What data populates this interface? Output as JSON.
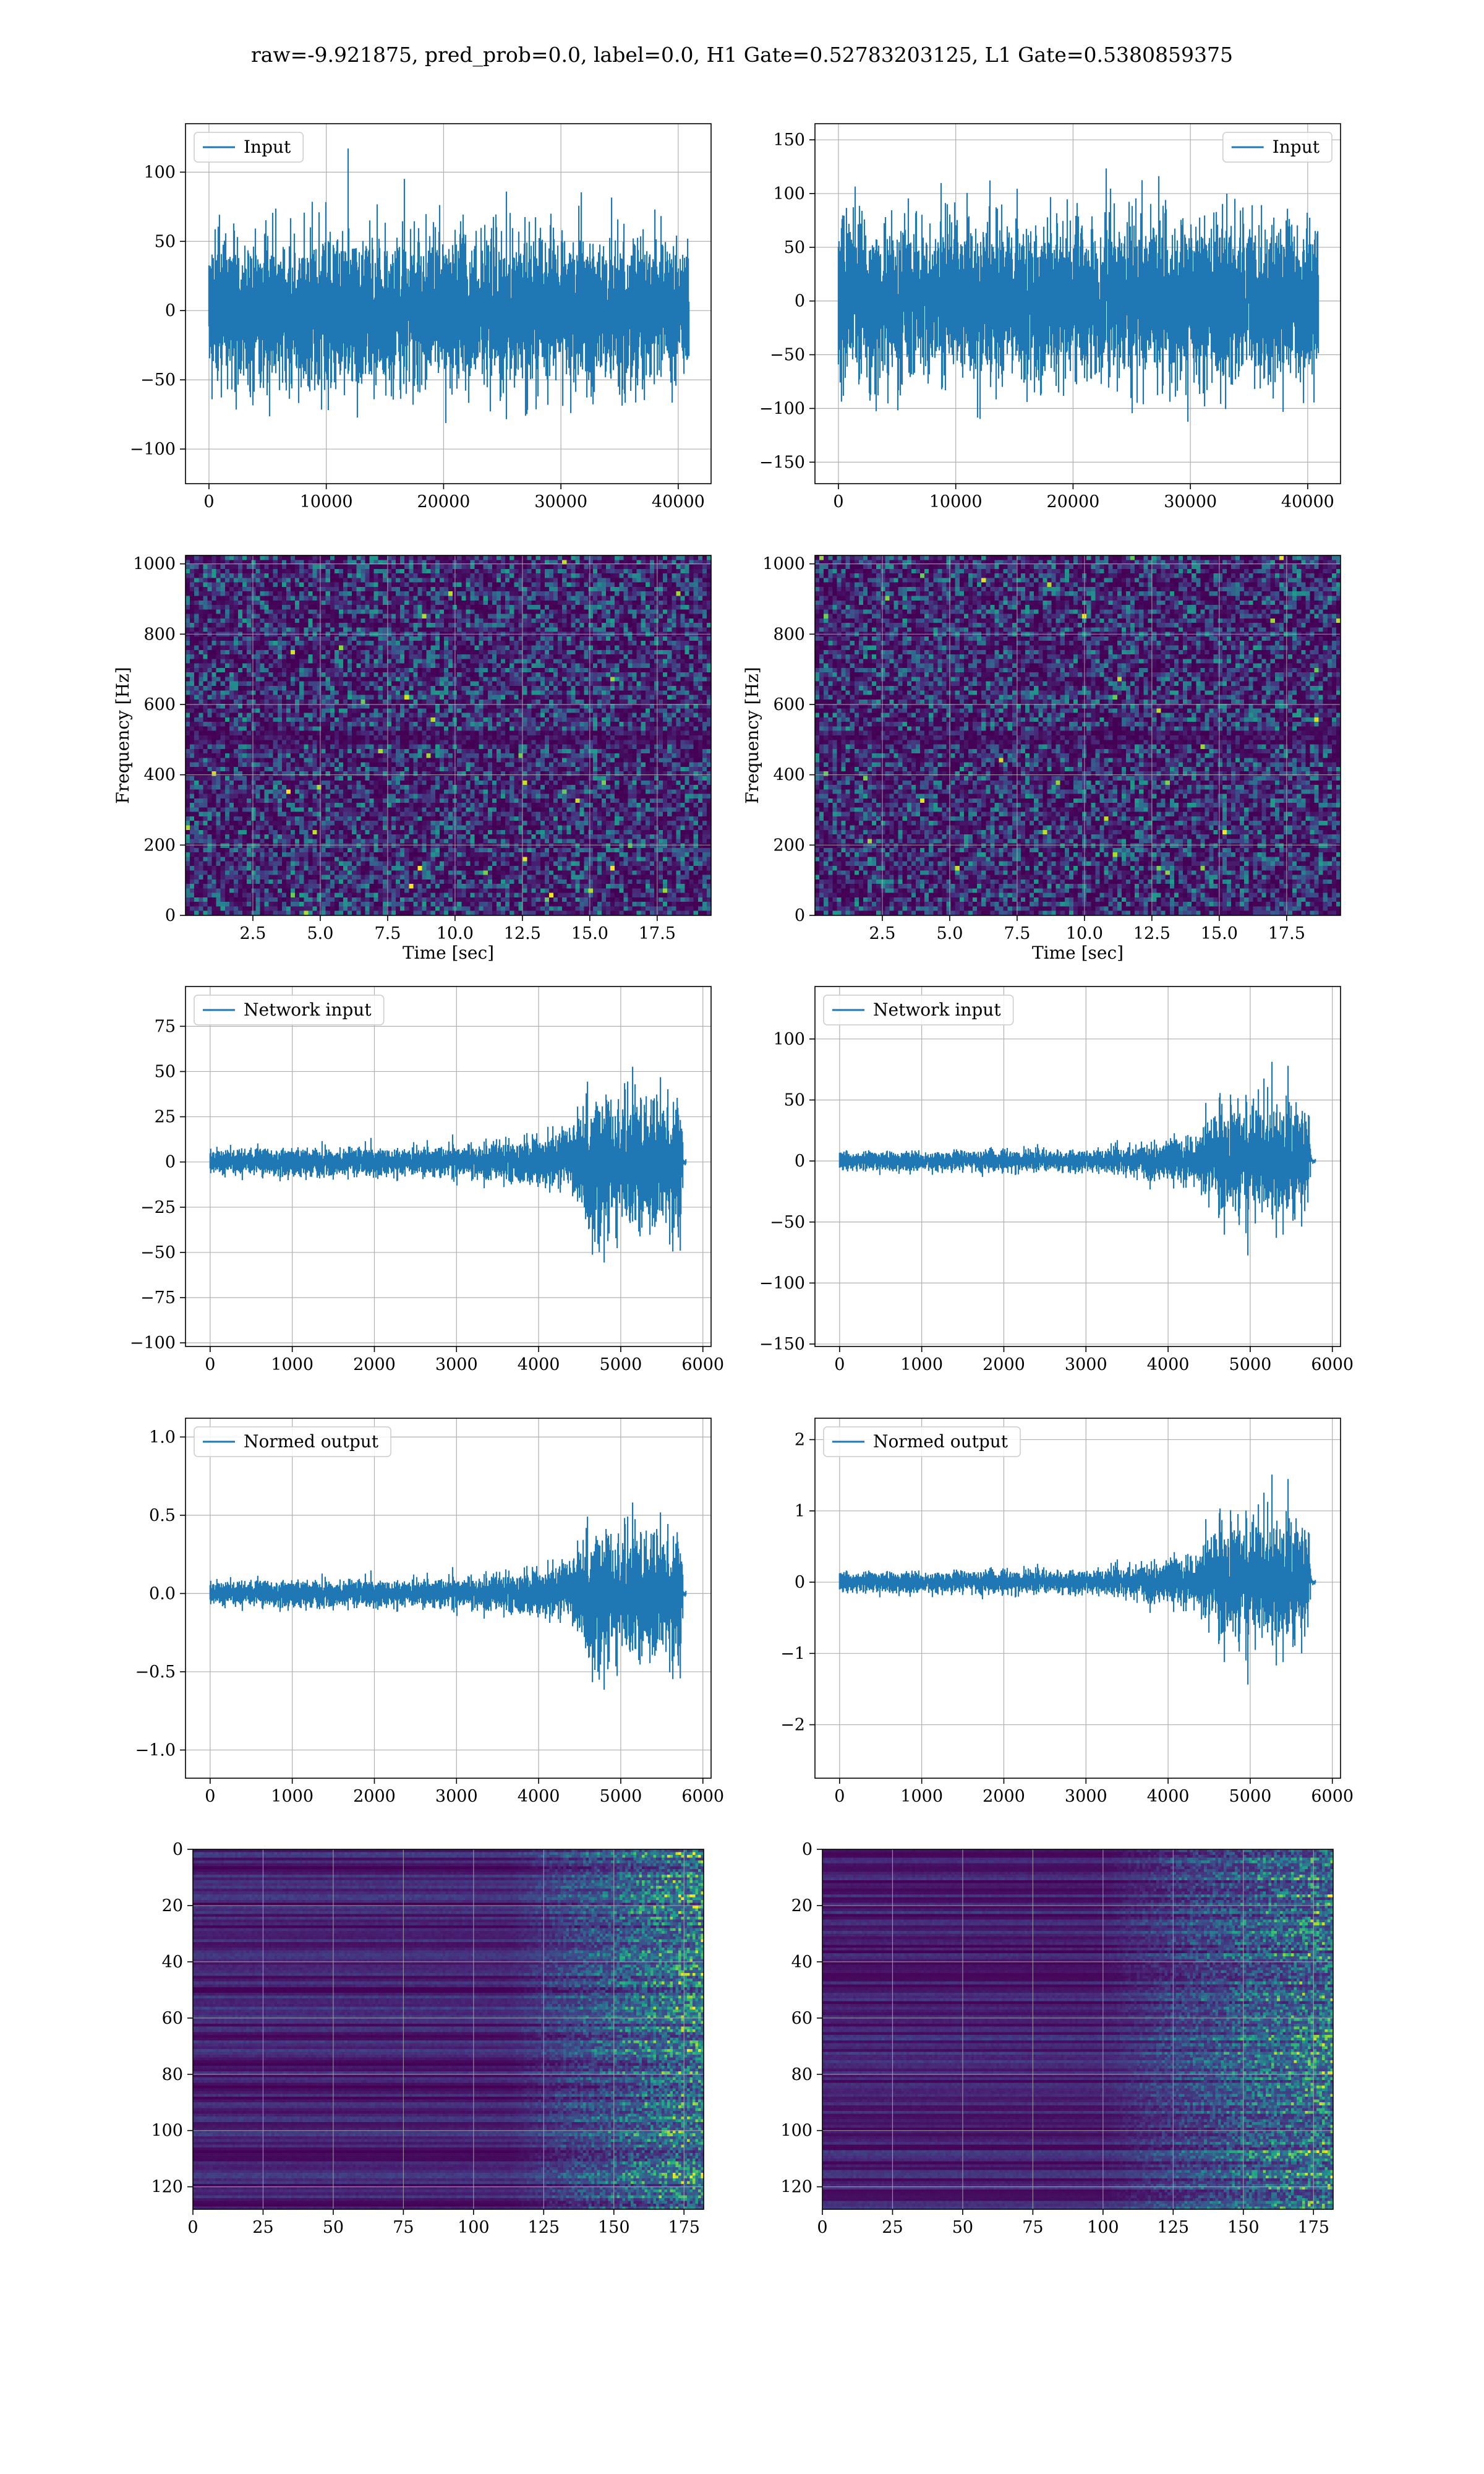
{
  "figure": {
    "suptitle": "raw=-9.921875, pred_prob=0.0, label=0.0, H1 Gate=0.52783203125, L1 Gate=0.5380859375"
  },
  "chart_data": [
    {
      "type": "line",
      "row": 0,
      "col": 0,
      "legend": "Input",
      "legend_loc": "upper-left",
      "xlim": [
        -2000,
        42800
      ],
      "ylim": [
        -125,
        135
      ],
      "xticks": [
        0,
        10000,
        20000,
        30000,
        40000
      ],
      "yticks": [
        -100,
        -50,
        0,
        50,
        100
      ],
      "signal": {
        "n": 40960,
        "envelope": [
          [
            0,
            0.9
          ],
          [
            0.5,
            0.9
          ],
          [
            1,
            0.9
          ]
        ],
        "peak": 110,
        "seed": 11
      }
    },
    {
      "type": "line",
      "row": 0,
      "col": 1,
      "legend": "Input",
      "legend_loc": "upper-right",
      "xlim": [
        -2000,
        42800
      ],
      "ylim": [
        -170,
        165
      ],
      "xticks": [
        0,
        10000,
        20000,
        30000,
        40000
      ],
      "yticks": [
        -150,
        -100,
        -50,
        0,
        50,
        100,
        150
      ],
      "signal": {
        "n": 40960,
        "envelope": [
          [
            0,
            0.9
          ],
          [
            0.5,
            0.9
          ],
          [
            1,
            0.9
          ]
        ],
        "peak": 150,
        "seed": 23
      }
    },
    {
      "type": "heatmap",
      "row": 1,
      "col": 0,
      "xlabel": "Time [sec]",
      "ylabel": "Frequency [Hz]",
      "xlim": [
        0,
        19.5
      ],
      "ylim": [
        0,
        1024
      ],
      "xticks": [
        2.5,
        5.0,
        7.5,
        10.0,
        12.5,
        15.0,
        17.5
      ],
      "yticks": [
        0,
        200,
        400,
        600,
        800,
        1000
      ],
      "colormap": "viridis",
      "heat": {
        "kind": "spectrogram",
        "cols": 120,
        "rows": 80,
        "seed": 5
      }
    },
    {
      "type": "heatmap",
      "row": 1,
      "col": 1,
      "xlabel": "Time [sec]",
      "ylabel": "Frequency [Hz]",
      "xlim": [
        0,
        19.5
      ],
      "ylim": [
        0,
        1024
      ],
      "xticks": [
        2.5,
        5.0,
        7.5,
        10.0,
        12.5,
        15.0,
        17.5
      ],
      "yticks": [
        0,
        200,
        400,
        600,
        800,
        1000
      ],
      "colormap": "viridis",
      "heat": {
        "kind": "spectrogram",
        "cols": 120,
        "rows": 80,
        "seed": 9
      }
    },
    {
      "type": "line",
      "row": 2,
      "col": 0,
      "legend": "Network input",
      "legend_loc": "upper-left",
      "xlim": [
        -300,
        6100
      ],
      "ylim": [
        -102,
        97
      ],
      "xticks": [
        0,
        1000,
        2000,
        3000,
        4000,
        5000,
        6000
      ],
      "yticks": [
        -100,
        -75,
        -50,
        -25,
        0,
        25,
        50,
        75
      ],
      "signal": {
        "n": 5800,
        "envelope": [
          [
            0,
            0.14
          ],
          [
            0.55,
            0.16
          ],
          [
            0.75,
            0.3
          ],
          [
            0.8,
            0.75
          ],
          [
            0.9,
            0.72
          ],
          [
            0.99,
            0.7
          ],
          [
            0.993,
            0.03
          ],
          [
            1,
            0.03
          ]
        ],
        "peak": 95,
        "seed": 31
      }
    },
    {
      "type": "line",
      "row": 2,
      "col": 1,
      "legend": "Network input",
      "legend_loc": "upper-left",
      "xlim": [
        -300,
        6100
      ],
      "ylim": [
        -152,
        143
      ],
      "xticks": [
        0,
        1000,
        2000,
        3000,
        4000,
        5000,
        6000
      ],
      "yticks": [
        -150,
        -100,
        -50,
        0,
        50,
        100
      ],
      "signal": {
        "n": 5800,
        "envelope": [
          [
            0,
            0.1
          ],
          [
            0.55,
            0.12
          ],
          [
            0.75,
            0.25
          ],
          [
            0.8,
            0.6
          ],
          [
            0.88,
            0.58
          ],
          [
            0.985,
            0.55
          ],
          [
            0.99,
            0.03
          ],
          [
            1,
            0.03
          ]
        ],
        "peak": 140,
        "seed": 37
      }
    },
    {
      "type": "line",
      "row": 3,
      "col": 0,
      "legend": "Normed output",
      "legend_loc": "upper-left",
      "xlim": [
        -300,
        6100
      ],
      "ylim": [
        -1.18,
        1.12
      ],
      "xticks": [
        0,
        1000,
        2000,
        3000,
        4000,
        5000,
        6000
      ],
      "yticks": [
        -1.0,
        -0.5,
        0.0,
        0.5,
        1.0
      ],
      "signal": {
        "n": 5800,
        "envelope": [
          [
            0,
            0.14
          ],
          [
            0.55,
            0.16
          ],
          [
            0.75,
            0.3
          ],
          [
            0.8,
            0.75
          ],
          [
            0.9,
            0.72
          ],
          [
            0.99,
            0.7
          ],
          [
            0.993,
            0.03
          ],
          [
            1,
            0.03
          ]
        ],
        "peak": 1.05,
        "seed": 31
      }
    },
    {
      "type": "line",
      "row": 3,
      "col": 1,
      "legend": "Normed output",
      "legend_loc": "upper-left",
      "xlim": [
        -300,
        6100
      ],
      "ylim": [
        -2.75,
        2.3
      ],
      "xticks": [
        0,
        1000,
        2000,
        3000,
        4000,
        5000,
        6000
      ],
      "yticks": [
        -2,
        -1,
        0,
        1,
        2
      ],
      "signal": {
        "n": 5800,
        "envelope": [
          [
            0,
            0.1
          ],
          [
            0.55,
            0.12
          ],
          [
            0.75,
            0.25
          ],
          [
            0.8,
            0.6
          ],
          [
            0.88,
            0.58
          ],
          [
            0.985,
            0.55
          ],
          [
            0.99,
            0.03
          ],
          [
            1,
            0.03
          ]
        ],
        "peak": 2.6,
        "seed": 37
      }
    },
    {
      "type": "heatmap",
      "row": 4,
      "col": 0,
      "xlim": [
        0,
        182
      ],
      "ylim": [
        128,
        0
      ],
      "xticks": [
        0,
        25,
        50,
        75,
        100,
        125,
        150,
        175
      ],
      "yticks": [
        0,
        20,
        40,
        60,
        80,
        100,
        120
      ],
      "colormap": "viridis",
      "heat": {
        "kind": "features",
        "cols": 182,
        "rows": 128,
        "seed": 41,
        "onset": 0.62
      }
    },
    {
      "type": "heatmap",
      "row": 4,
      "col": 1,
      "xlim": [
        0,
        182
      ],
      "ylim": [
        128,
        0
      ],
      "xticks": [
        0,
        25,
        50,
        75,
        100,
        125,
        150,
        175
      ],
      "yticks": [
        0,
        20,
        40,
        60,
        80,
        100,
        120
      ],
      "colormap": "viridis",
      "heat": {
        "kind": "features",
        "cols": 182,
        "rows": 128,
        "seed": 53,
        "onset": 0.55
      }
    }
  ]
}
